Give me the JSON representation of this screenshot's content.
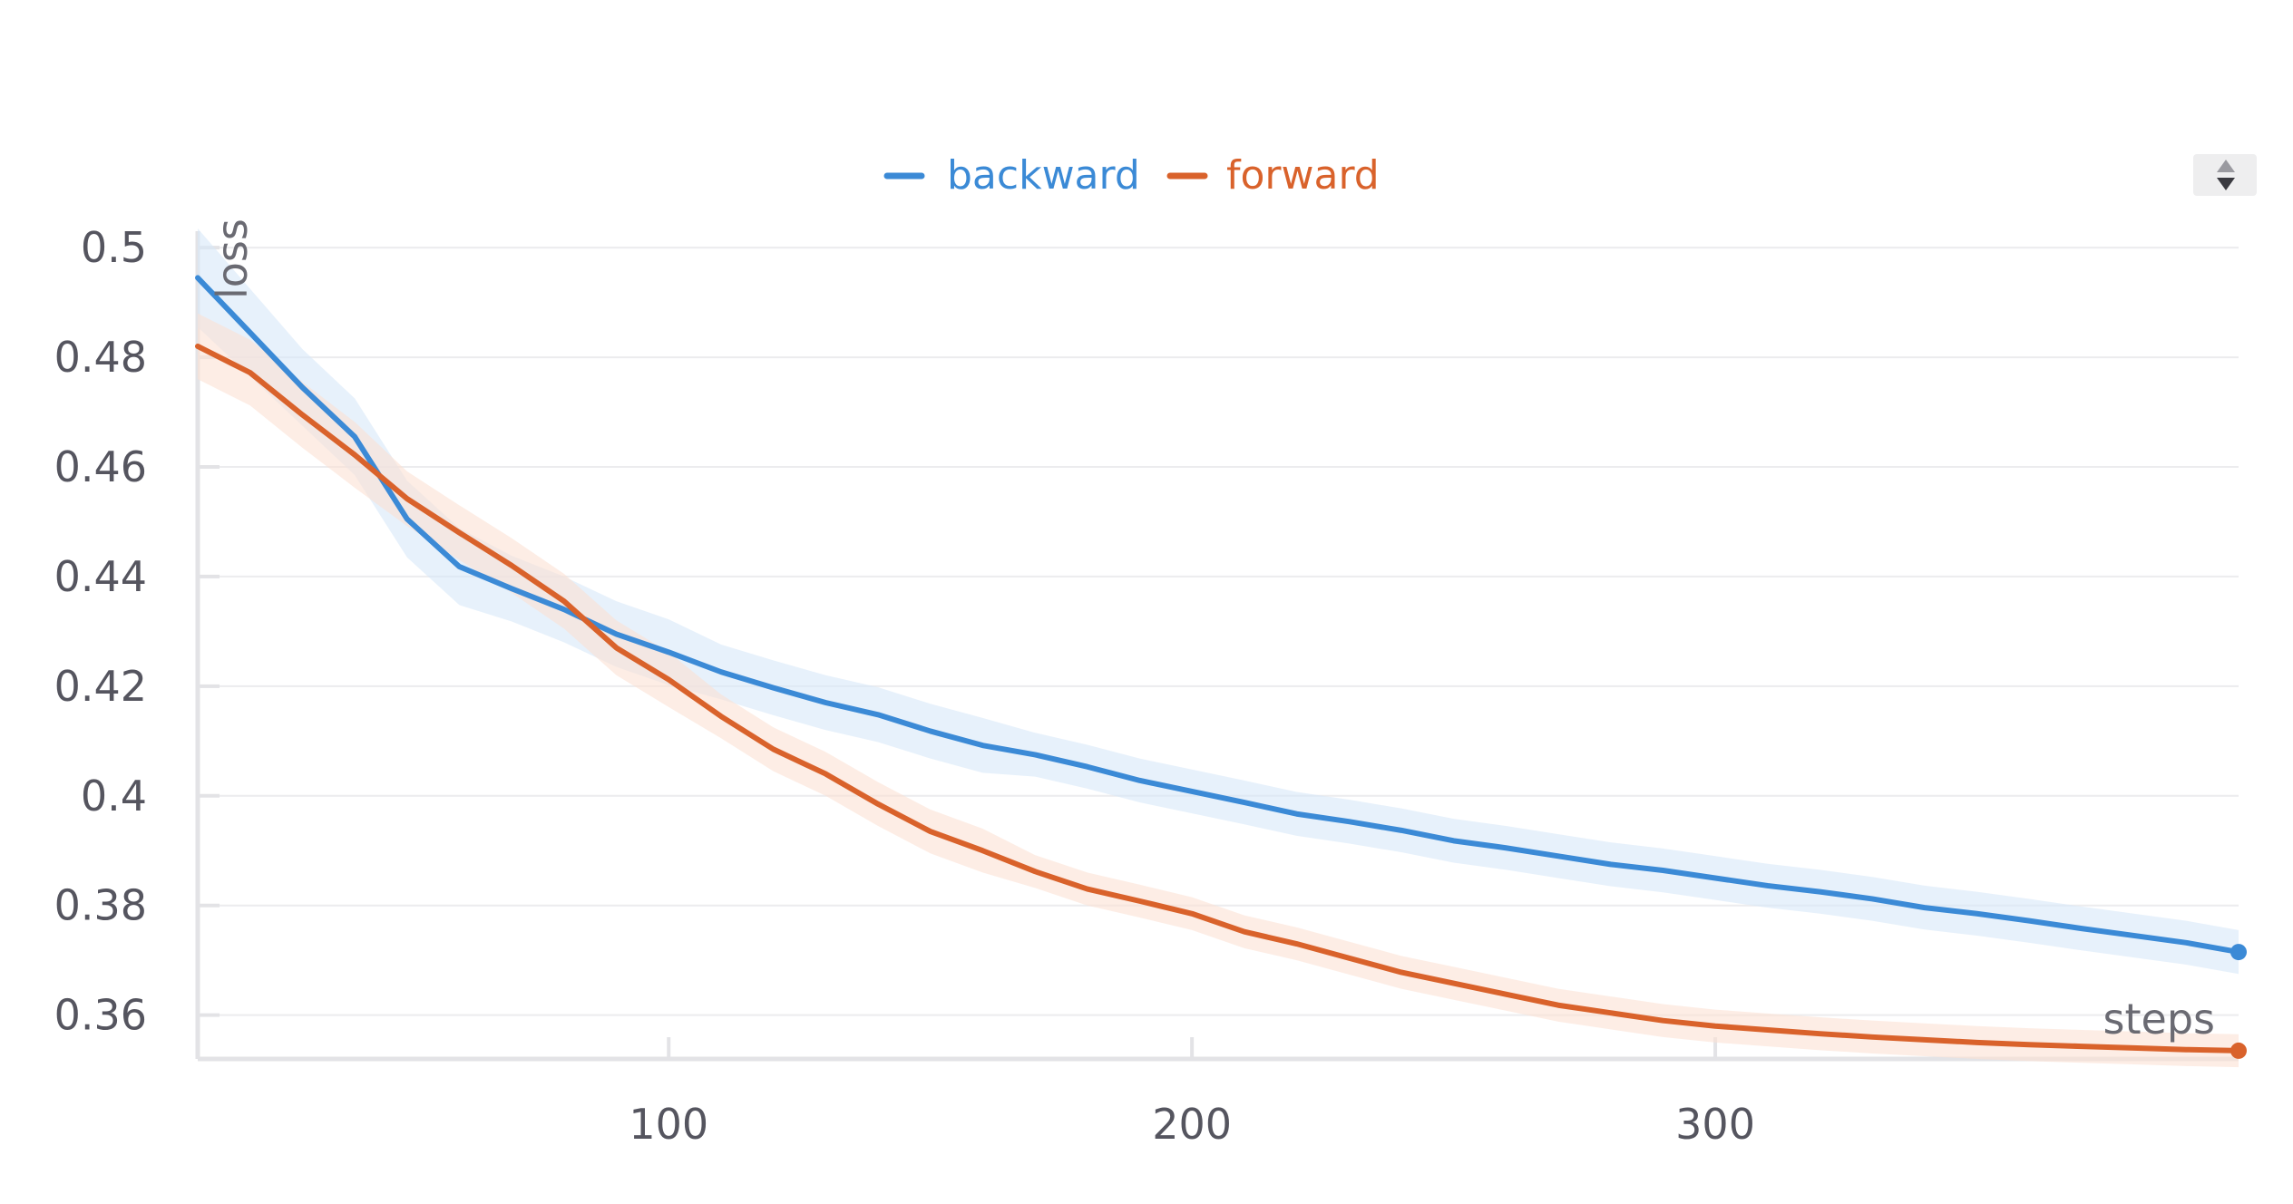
{
  "chart_data": {
    "type": "line",
    "xlabel": "steps",
    "ylabel": "loss",
    "xlim": [
      10,
      400
    ],
    "ylim": [
      0.352,
      0.503
    ],
    "xticks": [
      100,
      200,
      300
    ],
    "yticks": [
      0.36,
      0.38,
      0.4,
      0.42,
      0.44,
      0.46,
      0.48,
      0.5
    ],
    "ytick_labels": [
      "0.36",
      "0.38",
      "0.4",
      "0.42",
      "0.44",
      "0.46",
      "0.48",
      "0.5"
    ],
    "xtick_labels": [
      "100",
      "200",
      "300"
    ],
    "legend_placement": "top-center",
    "grid": "horizontal",
    "series": [
      {
        "name": "backward",
        "color": "#3b8ad6",
        "band_color": "#d7e7f8",
        "x": [
          10,
          20,
          30,
          40,
          50,
          60,
          70,
          80,
          90,
          100,
          110,
          120,
          130,
          140,
          150,
          160,
          170,
          180,
          190,
          200,
          210,
          220,
          230,
          240,
          250,
          260,
          270,
          280,
          290,
          300,
          310,
          320,
          330,
          340,
          350,
          360,
          370,
          380,
          390,
          400
        ],
        "y": [
          0.4945,
          0.4845,
          0.4745,
          0.4655,
          0.4505,
          0.4418,
          0.4378,
          0.434,
          0.4295,
          0.4262,
          0.4226,
          0.4197,
          0.417,
          0.4148,
          0.4118,
          0.4092,
          0.4075,
          0.4053,
          0.4028,
          0.4008,
          0.3988,
          0.3967,
          0.3953,
          0.3937,
          0.3918,
          0.3905,
          0.389,
          0.3875,
          0.3864,
          0.385,
          0.3836,
          0.3825,
          0.3812,
          0.3796,
          0.3785,
          0.3772,
          0.3758,
          0.3745,
          0.3732,
          0.3715
        ],
        "band": [
          0.009,
          0.008,
          0.007,
          0.007,
          0.007,
          0.007,
          0.006,
          0.006,
          0.006,
          0.006,
          0.005,
          0.005,
          0.005,
          0.005,
          0.005,
          0.005,
          0.004,
          0.004,
          0.004,
          0.004,
          0.004,
          0.004,
          0.004,
          0.004,
          0.004,
          0.004,
          0.004,
          0.004,
          0.004,
          0.004,
          0.004,
          0.004,
          0.004,
          0.004,
          0.004,
          0.004,
          0.004,
          0.004,
          0.004,
          0.004
        ]
      },
      {
        "name": "forward",
        "color": "#d9622b",
        "band_color": "#fbe1d3",
        "x": [
          10,
          20,
          30,
          40,
          50,
          60,
          70,
          80,
          90,
          100,
          110,
          120,
          130,
          140,
          150,
          160,
          170,
          180,
          190,
          200,
          210,
          220,
          230,
          240,
          250,
          260,
          270,
          280,
          290,
          300,
          310,
          320,
          330,
          340,
          350,
          360,
          370,
          380,
          390,
          400
        ],
        "y": [
          0.482,
          0.4772,
          0.4695,
          0.4622,
          0.4542,
          0.448,
          0.442,
          0.4355,
          0.427,
          0.4212,
          0.4145,
          0.4085,
          0.404,
          0.3985,
          0.3935,
          0.39,
          0.3862,
          0.383,
          0.3808,
          0.3785,
          0.3752,
          0.373,
          0.3704,
          0.3678,
          0.3658,
          0.3638,
          0.3618,
          0.3604,
          0.359,
          0.358,
          0.3573,
          0.3566,
          0.356,
          0.3555,
          0.355,
          0.3546,
          0.3543,
          0.354,
          0.3537,
          0.3535
        ],
        "band": [
          0.006,
          0.006,
          0.006,
          0.006,
          0.005,
          0.005,
          0.005,
          0.005,
          0.005,
          0.005,
          0.004,
          0.004,
          0.004,
          0.004,
          0.004,
          0.004,
          0.003,
          0.003,
          0.003,
          0.003,
          0.003,
          0.003,
          0.003,
          0.003,
          0.003,
          0.003,
          0.003,
          0.003,
          0.003,
          0.003,
          0.003,
          0.003,
          0.003,
          0.003,
          0.003,
          0.003,
          0.003,
          0.003,
          0.003,
          0.003
        ]
      }
    ]
  },
  "controls": {
    "scroll_icon": "sort-arrows-icon"
  }
}
